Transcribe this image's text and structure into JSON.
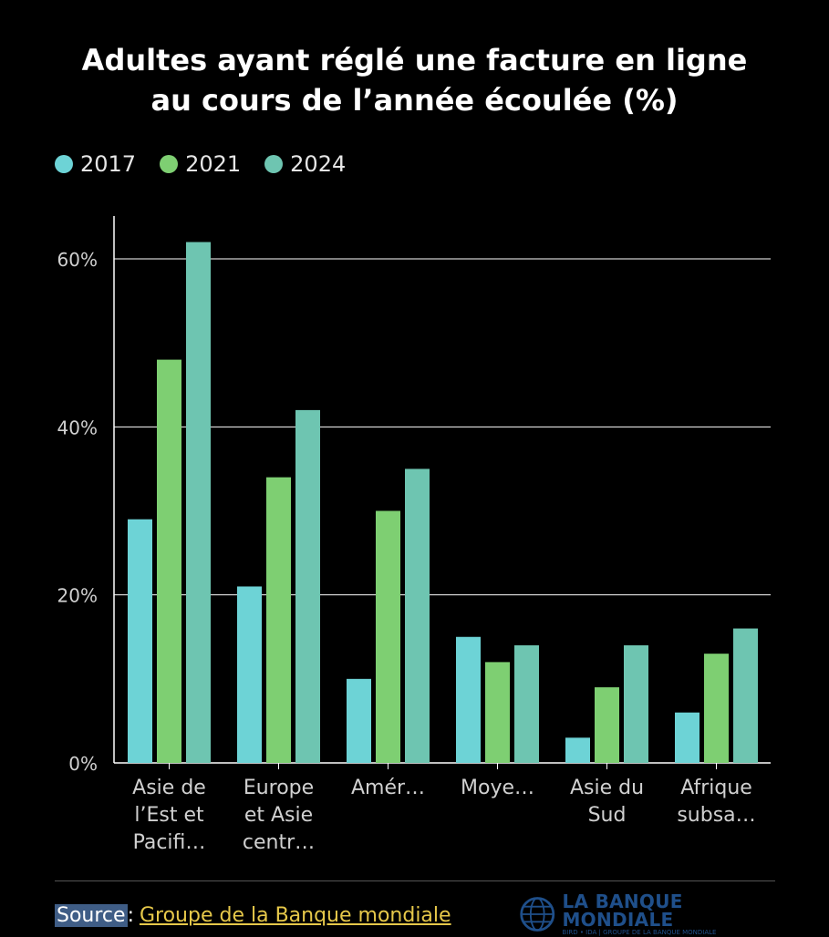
{
  "title_line1": "Adultes ayant réglé une facture en ligne",
  "title_line2": "au cours de l’année écoulée (%)",
  "colors": {
    "2017": "#6dd3d6",
    "2021": "#7ecf72",
    "2024": "#6ec5b1",
    "grid": "#ffffff",
    "axis_text": "#d0d0d0"
  },
  "chart_data": {
    "type": "bar",
    "categories": [
      [
        "Asie de",
        "l’Est et",
        "Pacifi…"
      ],
      [
        "Europe",
        "et Asie",
        "centr…"
      ],
      [
        "Amér…"
      ],
      [
        "Moye…"
      ],
      [
        "Asie du",
        "Sud"
      ],
      [
        "Afrique",
        "subsa…"
      ]
    ],
    "series": [
      {
        "name": "2017",
        "values": [
          29,
          21,
          10,
          15,
          3,
          6
        ]
      },
      {
        "name": "2021",
        "values": [
          48,
          34,
          30,
          12,
          9,
          13
        ]
      },
      {
        "name": "2024",
        "values": [
          62,
          42,
          35,
          14,
          14,
          16
        ]
      }
    ],
    "yticks": [
      0,
      20,
      40,
      60
    ],
    "ytick_labels": [
      "0%",
      "20%",
      "40%",
      "60%"
    ],
    "ylim": [
      0,
      65
    ],
    "title": "Adultes ayant réglé une facture en ligne au cours de l’année écoulée (%)",
    "xlabel": "",
    "ylabel": "",
    "grid": true,
    "legend_position": "top-left"
  },
  "footer": {
    "source_label": "Source",
    "source_link": "Groupe de la Banque mondiale",
    "logo_name": "LA BANQUE MONDIALE",
    "logo_sub": "BIRD • IDA | GROUPE DE LA BANQUE MONDIALE"
  }
}
